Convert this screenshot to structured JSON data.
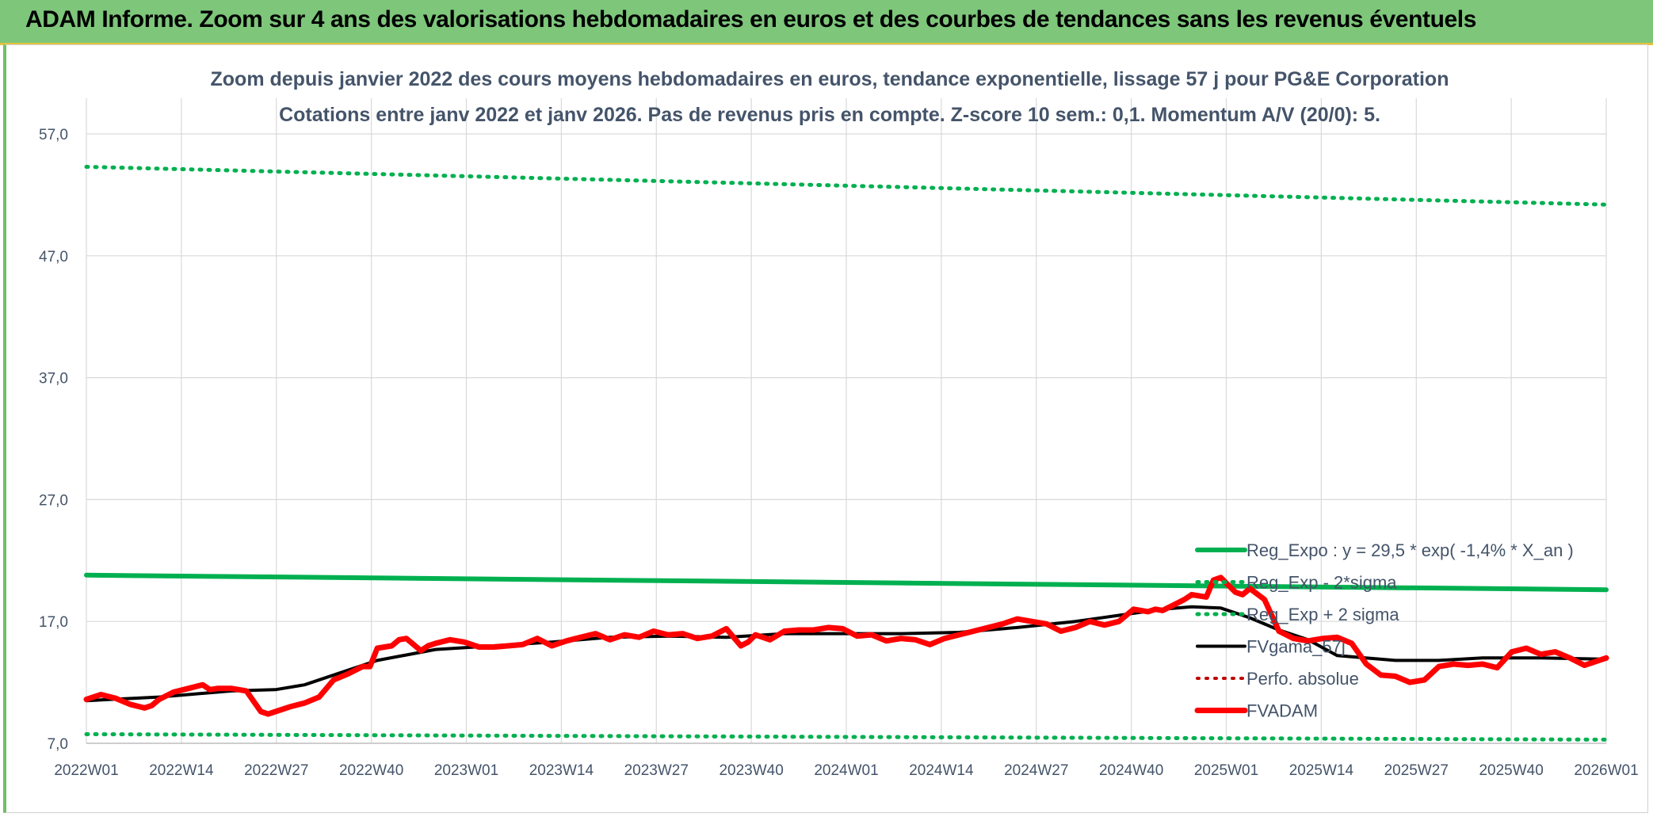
{
  "banner": {
    "title": "ADAM Informe. Zoom sur 4 ans des valorisations hebdomadaires en euros et des courbes de tendances sans les revenus éventuels"
  },
  "chart_data": {
    "type": "line",
    "title": "Zoom depuis janvier 2022 des cours moyens hebdomadaires en euros, tendance exponentielle, lissage 57 j pour PG&E Corporation",
    "subtitle": "Cotations entre janv 2022 et janv 2026. Pas de revenus pris en compte. Z-score 10 sem.: 0,1. Momentum A/V (20/0): 5.",
    "xlabel": "",
    "ylabel": "",
    "x_ticks": [
      "2022W01",
      "2022W14",
      "2022W27",
      "2022W40",
      "2023W01",
      "2023W14",
      "2023W27",
      "2023W40",
      "2024W01",
      "2024W14",
      "2024W27",
      "2024W40",
      "2025W01",
      "2025W14",
      "2025W27",
      "2025W40",
      "2026W01"
    ],
    "y_ticks": [
      "7,0",
      "17,0",
      "27,0",
      "37,0",
      "47,0",
      "57,0"
    ],
    "ylim": [
      7,
      57
    ],
    "weeks_range": [
      0,
      209
    ],
    "grid": true,
    "legend_position": "bottom-right",
    "colors": {
      "reg_expo": "#00b050",
      "fvadam": "#ff0000",
      "fvgama": "#000000",
      "perfo": "#c00000",
      "grid": "#d9d9d9",
      "axis_text": "#44546a"
    },
    "series": [
      {
        "name": "Reg_Expo : y = 29,5 * exp( -1,4% *  X_an )",
        "style": "solid",
        "color": "#00b050",
        "x": [
          0,
          209
        ],
        "y": [
          20.8,
          19.6
        ]
      },
      {
        "name": "Reg_Exp - 2*sigma",
        "style": "dotted",
        "color": "#00b050",
        "x": [
          0,
          209
        ],
        "y": [
          7.75,
          7.3
        ]
      },
      {
        "name": "Reg_Exp + 2 sigma",
        "style": "dotted",
        "color": "#00b050",
        "x": [
          0,
          209
        ],
        "y": [
          54.3,
          51.2
        ]
      },
      {
        "name": "FVgama_57j",
        "style": "solid",
        "color": "#000000",
        "x": [
          0,
          10,
          20,
          26,
          30,
          36,
          40,
          48,
          56,
          64,
          72,
          80,
          88,
          96,
          104,
          112,
          120,
          128,
          136,
          142,
          148,
          152,
          156,
          160,
          164,
          168,
          172,
          180,
          186,
          192,
          200,
          209
        ],
        "y": [
          10.5,
          10.8,
          11.3,
          11.4,
          11.8,
          13.0,
          13.8,
          14.7,
          15.0,
          15.3,
          15.7,
          15.8,
          15.7,
          16.0,
          16.0,
          16.0,
          16.1,
          16.5,
          17.0,
          17.5,
          18.0,
          18.2,
          18.1,
          17.3,
          16.3,
          15.5,
          14.2,
          13.8,
          13.8,
          14.0,
          14.0,
          13.9
        ]
      },
      {
        "name": "Perfo. absolue",
        "style": "dotted",
        "color": "#c00000",
        "x": [],
        "y": []
      },
      {
        "name": "FVADAM",
        "style": "solid",
        "color": "#ff0000",
        "x": [
          0,
          2,
          4,
          6,
          8,
          9,
          10,
          12,
          14,
          16,
          17,
          18,
          20,
          22,
          24,
          25,
          26,
          28,
          30,
          32,
          34,
          36,
          38,
          39,
          40,
          42,
          43,
          44,
          46,
          47,
          48,
          50,
          52,
          54,
          56,
          58,
          60,
          62,
          64,
          66,
          68,
          70,
          72,
          74,
          76,
          78,
          80,
          82,
          84,
          86,
          88,
          90,
          91,
          92,
          94,
          96,
          98,
          100,
          102,
          104,
          106,
          108,
          110,
          112,
          114,
          116,
          118,
          120,
          122,
          124,
          126,
          128,
          130,
          132,
          134,
          136,
          138,
          140,
          142,
          144,
          146,
          147,
          148,
          150,
          151,
          152,
          154,
          155,
          156,
          158,
          159,
          160,
          162,
          164,
          166,
          168,
          170,
          172,
          174,
          176,
          178,
          180,
          182,
          184,
          186,
          188,
          190,
          192,
          194,
          196,
          198,
          200,
          202,
          204,
          206,
          209
        ],
        "y": [
          10.6,
          11.0,
          10.7,
          10.2,
          9.9,
          10.1,
          10.6,
          11.2,
          11.5,
          11.8,
          11.4,
          11.5,
          11.5,
          11.3,
          9.6,
          9.4,
          9.6,
          10.0,
          10.3,
          10.8,
          12.2,
          12.7,
          13.3,
          13.3,
          14.8,
          15.0,
          15.5,
          15.6,
          14.6,
          15.0,
          15.2,
          15.5,
          15.3,
          14.9,
          14.9,
          15.0,
          15.1,
          15.6,
          15.0,
          15.4,
          15.7,
          16.0,
          15.5,
          15.9,
          15.7,
          16.2,
          15.9,
          16.0,
          15.6,
          15.8,
          16.4,
          15.0,
          15.3,
          15.9,
          15.5,
          16.2,
          16.3,
          16.3,
          16.5,
          16.4,
          15.8,
          15.9,
          15.4,
          15.6,
          15.5,
          15.1,
          15.6,
          15.9,
          16.2,
          16.5,
          16.8,
          17.2,
          17.0,
          16.8,
          16.2,
          16.5,
          17.0,
          16.7,
          17.0,
          18.0,
          17.8,
          18.0,
          17.9,
          18.5,
          18.8,
          19.2,
          19.0,
          20.4,
          20.6,
          19.4,
          19.2,
          19.7,
          18.8,
          16.2,
          15.6,
          15.4,
          15.6,
          15.7,
          15.2,
          13.5,
          12.6,
          12.5,
          12.0,
          12.2,
          13.3,
          13.5,
          13.4,
          13.5,
          13.2,
          14.5,
          14.8,
          14.3,
          14.5,
          14.0,
          13.4,
          14.0
        ]
      }
    ]
  }
}
